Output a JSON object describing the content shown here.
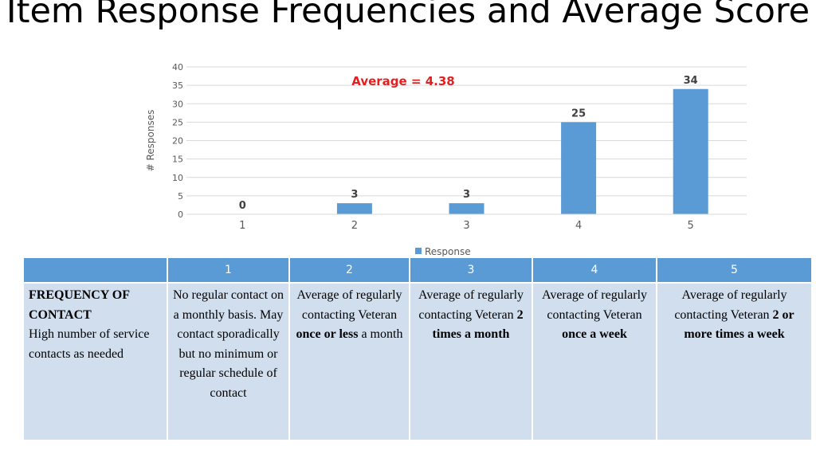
{
  "title": "Item Response Frequencies and Average Score",
  "chart_data": {
    "type": "bar",
    "categories": [
      "1",
      "2",
      "3",
      "4",
      "5"
    ],
    "series": [
      {
        "name": "Response",
        "values": [
          0,
          3,
          3,
          25,
          34
        ],
        "color": "#5b9bd5"
      }
    ],
    "ylabel": "# Responses",
    "xlabel": "",
    "ylim": [
      0,
      40
    ],
    "yticks": [
      0,
      5,
      10,
      15,
      20,
      25,
      30,
      35,
      40
    ],
    "grid": true,
    "legend": "bottom-center",
    "annotation": {
      "text": "Average = 4.38",
      "color": "#e31f1f"
    },
    "data_labels": true
  },
  "table": {
    "headers": [
      "",
      "1",
      "2",
      "3",
      "4",
      "5"
    ],
    "row_head": {
      "title": "FREQUENCY OF CONTACT",
      "subtitle": "High number of service contacts as needed"
    },
    "cells": [
      {
        "pre": "No regular contact on a monthly basis. May contact sporadically but no minimum or regular schedule of contact",
        "bold": "",
        "post": ""
      },
      {
        "pre": "Average of regularly contacting Veteran ",
        "bold": "once or less",
        "post": " a month"
      },
      {
        "pre": "Average of regularly contacting Veteran ",
        "bold": "2 times a month",
        "post": ""
      },
      {
        "pre": "Average of regularly contacting Veteran ",
        "bold": "once a week",
        "post": ""
      },
      {
        "pre": "Average of regularly contacting Veteran ",
        "bold": "2 or more times a week",
        "post": ""
      }
    ]
  }
}
